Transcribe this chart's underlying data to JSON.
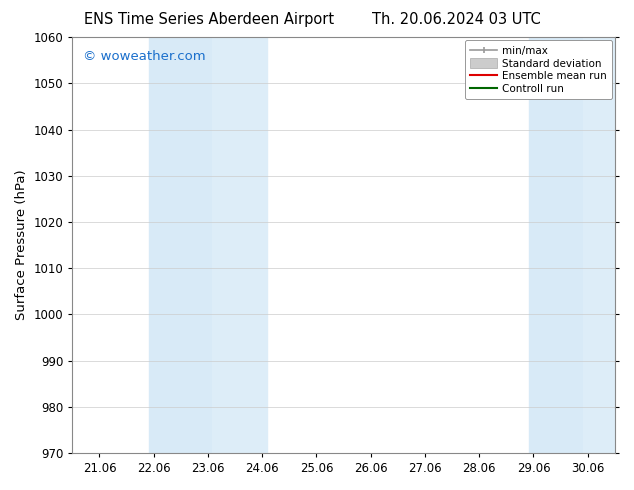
{
  "title_left": "ENS Time Series Aberdeen Airport",
  "title_right": "Th. 20.06.2024 03 UTC",
  "ylabel": "Surface Pressure (hPa)",
  "watermark": "© woweather.com",
  "watermark_color": "#1a6fcc",
  "ylim": [
    970,
    1060
  ],
  "yticks": [
    970,
    980,
    990,
    1000,
    1010,
    1020,
    1030,
    1040,
    1050,
    1060
  ],
  "xtick_labels": [
    "21.06",
    "22.06",
    "23.06",
    "24.06",
    "25.06",
    "26.06",
    "27.06",
    "28.06",
    "29.06",
    "30.06"
  ],
  "xtick_positions": [
    0,
    1,
    2,
    3,
    4,
    5,
    6,
    7,
    8,
    9
  ],
  "xlim": [
    -0.5,
    9.5
  ],
  "shaded_regions": [
    {
      "xmin": 0.92,
      "xmax": 2.08,
      "color": "#d8eaf7"
    },
    {
      "xmin": 2.08,
      "xmax": 3.08,
      "color": "#ddedf8"
    },
    {
      "xmin": 7.92,
      "xmax": 8.92,
      "color": "#d8eaf7"
    },
    {
      "xmin": 8.92,
      "xmax": 9.5,
      "color": "#ddedf8"
    }
  ],
  "legend_items": [
    {
      "label": "min/max",
      "color": "#999999",
      "lw": 1.2
    },
    {
      "label": "Standard deviation",
      "color": "#cccccc"
    },
    {
      "label": "Ensemble mean run",
      "color": "#dd0000",
      "lw": 1.5
    },
    {
      "label": "Controll run",
      "color": "#006600",
      "lw": 1.5
    }
  ],
  "bg_color": "#ffffff",
  "plot_bg_color": "#ffffff",
  "grid_color": "#cccccc",
  "tick_label_fontsize": 8.5,
  "axis_label_fontsize": 9.5,
  "title_fontsize": 10.5,
  "watermark_fontsize": 9.5
}
